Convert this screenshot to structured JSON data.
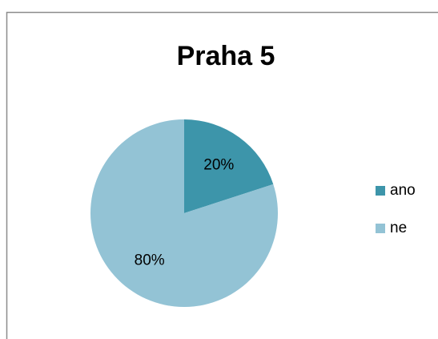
{
  "chart_data": {
    "type": "pie",
    "title": "Praha 5",
    "categories": [
      "ano",
      "ne"
    ],
    "values": [
      20,
      80
    ],
    "value_labels": [
      "20%",
      "80%"
    ],
    "colors": [
      "#3d95aa",
      "#93c3d5"
    ],
    "legend": "right"
  }
}
